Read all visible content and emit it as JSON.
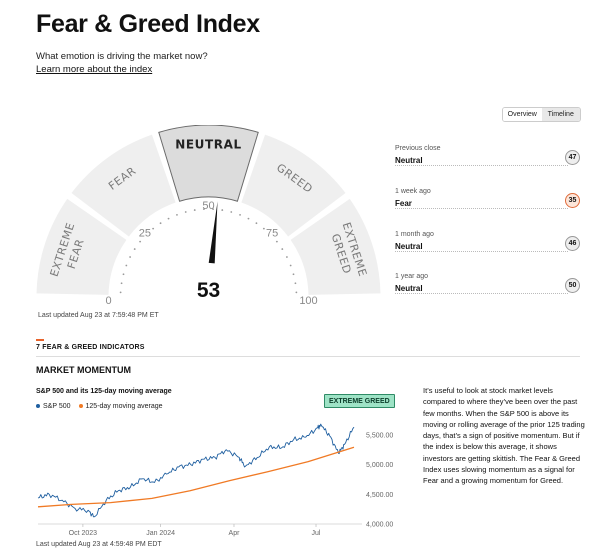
{
  "header": {
    "title": "Fear & Greed Index",
    "subtitle": "What emotion is driving the market now?",
    "learn_link": "Learn more about the index"
  },
  "toggle": {
    "overview": "Overview",
    "timeline": "Timeline",
    "selected": "Overview"
  },
  "gauge": {
    "value": "53",
    "value_num": 53,
    "segments": [
      "EXTREME FEAR",
      "FEAR",
      "NEUTRAL",
      "GREED",
      "EXTREME GREED"
    ],
    "active_segment": "NEUTRAL",
    "ticks": [
      "0",
      "25",
      "50",
      "75",
      "100"
    ],
    "last_updated": "Last updated Aug 23 at 7:59:48 PM ET"
  },
  "history": [
    {
      "label": "Previous close",
      "rating": "Neutral",
      "value": "47",
      "tone": "neutral"
    },
    {
      "label": "1 week ago",
      "rating": "Fear",
      "value": "35",
      "tone": "fear"
    },
    {
      "label": "1 month ago",
      "rating": "Neutral",
      "value": "46",
      "tone": "neutral"
    },
    {
      "label": "1 year ago",
      "rating": "Neutral",
      "value": "50",
      "tone": "neutral"
    }
  ],
  "indicators": {
    "heading": "7 FEAR & GREED INDICATORS",
    "section": "MARKET MOMENTUM",
    "chart_title": "S&P 500 and its 125-day moving average",
    "badge": "EXTREME GREED",
    "description": "It’s useful to look at stock market levels compared to where they’ve been over the past few months. When the S&P 500 is above its moving or rolling average of the prior 125 trading days, that’s a sign of positive momentum. But if the index is below this average, it shows investors are getting skittish. The Fear & Greed Index uses slowing momentum as a signal for Fear and a growing momentum for Greed.",
    "last_updated": "Last updated Aug 23 at 4:59:48 PM EDT"
  },
  "colors": {
    "sp500": "#1f5fa0",
    "moving_avg": "#f07a25",
    "fear": "#e06b3a",
    "accent": "#e8632b",
    "badge_bg": "#9ee3c6"
  },
  "chart_data": {
    "type": "line",
    "title": "S&P 500 and its 125-day moving average",
    "series": [
      {
        "name": "S&P 500",
        "color": "#1f5fa0",
        "x": [
          "2023-08-23",
          "2023-09-05",
          "2023-09-20",
          "2023-10-05",
          "2023-10-20",
          "2023-10-27",
          "2023-11-10",
          "2023-11-24",
          "2023-12-08",
          "2023-12-22",
          "2024-01-05",
          "2024-01-19",
          "2024-02-02",
          "2024-02-16",
          "2024-03-01",
          "2024-03-15",
          "2024-03-28",
          "2024-04-12",
          "2024-04-19",
          "2024-05-03",
          "2024-05-17",
          "2024-05-31",
          "2024-06-14",
          "2024-06-28",
          "2024-07-12",
          "2024-07-16",
          "2024-07-26",
          "2024-08-05",
          "2024-08-12",
          "2024-08-23"
        ],
        "values": [
          4440,
          4500,
          4400,
          4260,
          4230,
          4120,
          4400,
          4560,
          4620,
          4760,
          4700,
          4840,
          4960,
          5000,
          5090,
          5120,
          5250,
          5120,
          4970,
          5120,
          5300,
          5280,
          5420,
          5460,
          5620,
          5660,
          5480,
          5190,
          5340,
          5630
        ]
      },
      {
        "name": "125-day moving average",
        "color": "#f07a25",
        "x": [
          "2023-08-23",
          "2023-10-01",
          "2023-11-15",
          "2024-01-02",
          "2024-02-15",
          "2024-04-01",
          "2024-05-15",
          "2024-07-01",
          "2024-08-23"
        ],
        "values": [
          4290,
          4330,
          4360,
          4430,
          4560,
          4730,
          4880,
          5050,
          5290
        ]
      }
    ],
    "x_tick_labels": [
      "Oct 2023",
      "Jan 2024",
      "Apr",
      "Jul"
    ],
    "y_tick_labels": [
      "4,000.00",
      "4,500.00",
      "5,000.00",
      "5,500.00"
    ],
    "ylim": [
      4000,
      5750
    ],
    "legend_position": "top-left",
    "grid": false
  }
}
